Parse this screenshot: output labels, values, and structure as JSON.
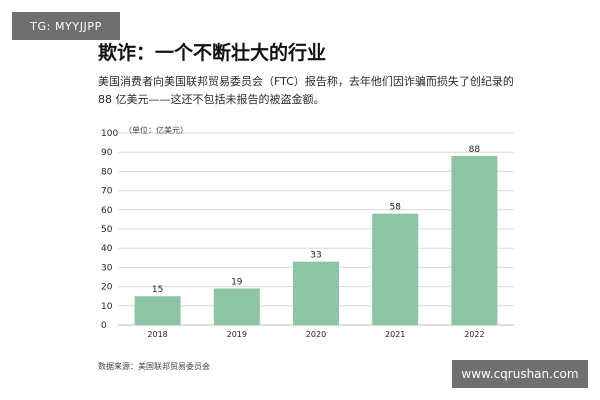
{
  "watermarks": {
    "top_left": "TG: MYYJJPP",
    "bottom_right": "www.cqrushan.com"
  },
  "title": "欺诈：一个不断壮大的行业",
  "subtitle": "美国消费者向美国联邦贸易委员会（FTC）报告称，去年他们因诈骗而损失了创纪录的 88 亿美元——这还不包括未报告的被盗金额。",
  "source": "数据来源：美国联邦贸易委员会",
  "colors": {
    "bar": "#8cc5a4",
    "grid": "#d9d9d9",
    "text": "#222222"
  },
  "chart_data": {
    "type": "bar",
    "categories": [
      "2018",
      "2019",
      "2020",
      "2021",
      "2022"
    ],
    "values": [
      15,
      19,
      33,
      58,
      88
    ],
    "unit_label": "（单位：亿美元）",
    "yticks": [
      0,
      10,
      20,
      30,
      40,
      50,
      60,
      70,
      80,
      90,
      100
    ],
    "ylim": [
      0,
      100
    ],
    "grid": true,
    "data_labels": true
  }
}
